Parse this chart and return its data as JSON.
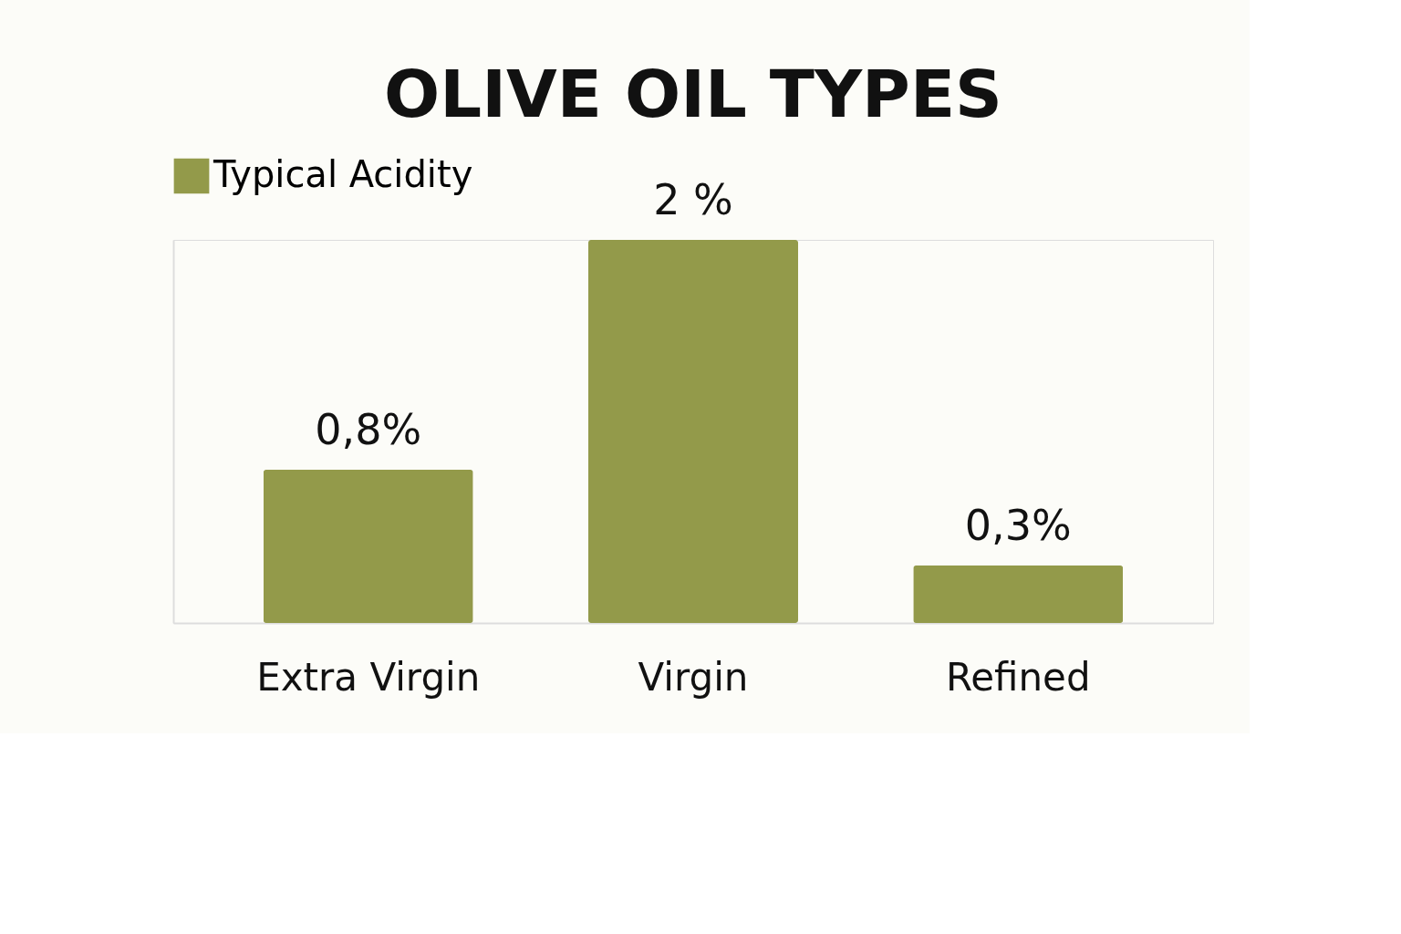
{
  "chart_data": {
    "type": "bar",
    "title": "OLIVE OIL TYPES",
    "categories": [
      "Extra Virgin",
      "Virgin",
      "Refined"
    ],
    "series": [
      {
        "name": "Typical Acidity",
        "color": "#939a4a",
        "values": [
          0.8,
          2,
          0.3
        ],
        "value_labels": [
          "0,8%",
          "2 %",
          "0,3%"
        ]
      }
    ],
    "legend": "top",
    "grid": false,
    "tick_labels": "x"
  }
}
